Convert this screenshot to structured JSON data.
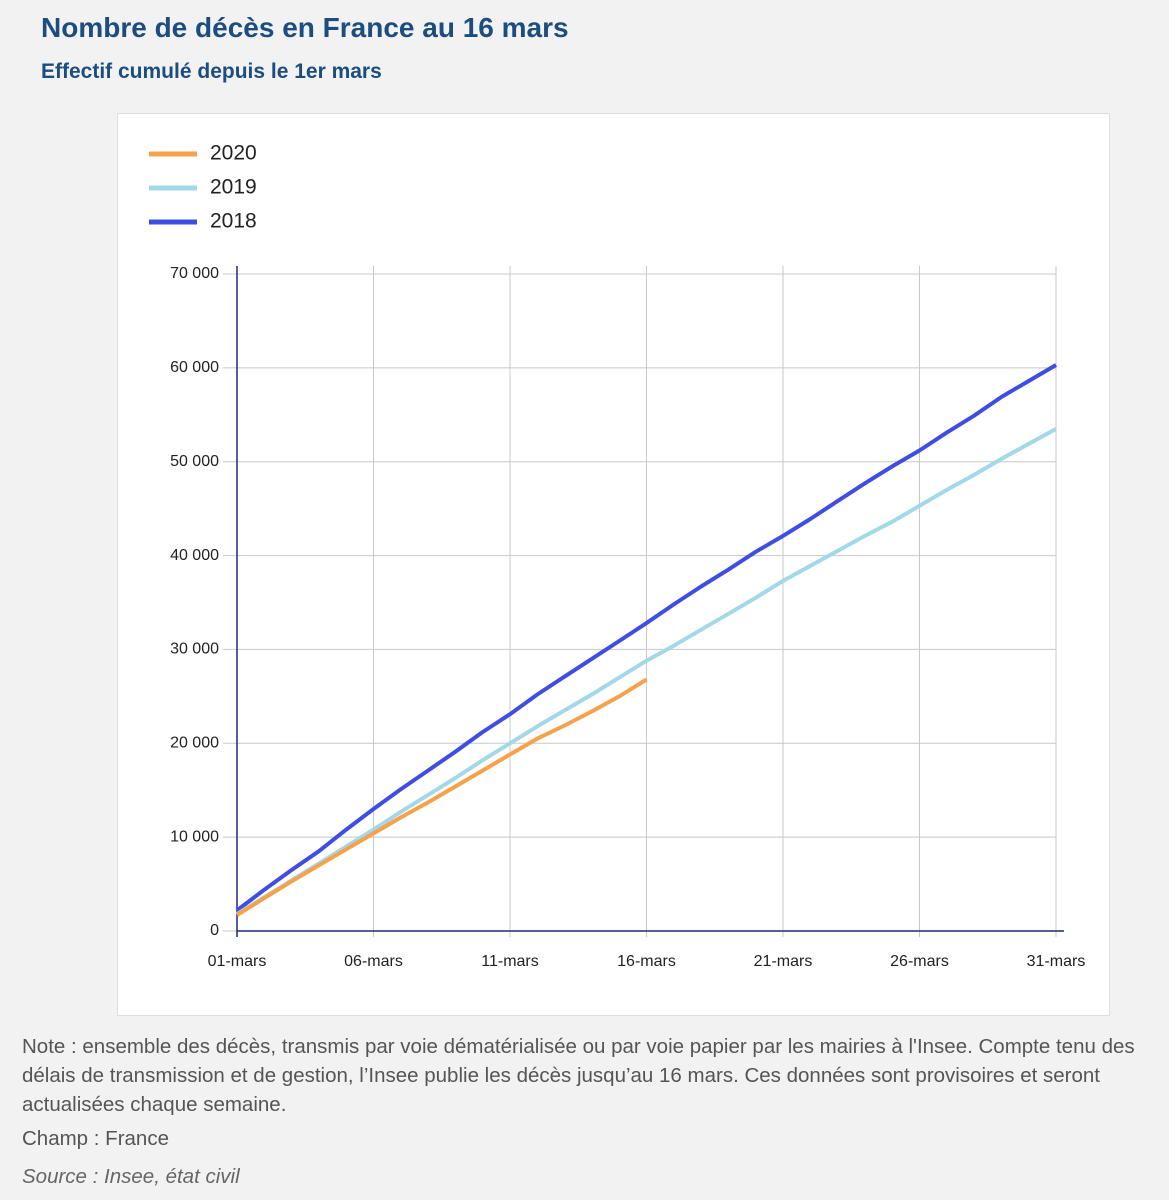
{
  "chart_data": {
    "type": "line",
    "title": "Nombre de décès en France au 16 mars",
    "subtitle": "Effectif cumulé depuis le 1er mars",
    "categories": [
      "01-mars",
      null,
      null,
      null,
      null,
      "06-mars",
      null,
      null,
      null,
      null,
      "11-mars",
      null,
      null,
      null,
      null,
      "16-mars",
      null,
      null,
      null,
      null,
      "21-mars",
      null,
      null,
      null,
      null,
      "26-mars",
      null,
      null,
      null,
      null,
      "31-mars"
    ],
    "series": [
      {
        "name": "2020",
        "color": "#f7a24b",
        "values": [
          1700,
          3500,
          5300,
          7000,
          8700,
          10400,
          12100,
          13700,
          15400,
          17100,
          18800,
          20500,
          21900,
          23400,
          25000,
          26800,
          null,
          null,
          null,
          null,
          null,
          null,
          null,
          null,
          null,
          null,
          null,
          null,
          null,
          null,
          null
        ]
      },
      {
        "name": "2019",
        "color": "#a3d8e8",
        "values": [
          1800,
          3600,
          5400,
          7200,
          9000,
          10800,
          12700,
          14500,
          16300,
          18200,
          20000,
          21800,
          23500,
          25200,
          27000,
          28800,
          30400,
          32100,
          33800,
          35500,
          37300,
          38900,
          40500,
          42100,
          43600,
          45300,
          47000,
          48600,
          50300,
          51900,
          53500
        ]
      },
      {
        "name": "2018",
        "color": "#3f4de3",
        "values": [
          2200,
          4400,
          6500,
          8500,
          10800,
          13000,
          15100,
          17100,
          19100,
          21200,
          23100,
          25200,
          27100,
          29000,
          30900,
          32800,
          34800,
          36700,
          38500,
          40400,
          42100,
          43900,
          45800,
          47700,
          49500,
          51200,
          53100,
          54900,
          56900,
          58600,
          60300
        ]
      }
    ],
    "ylim": [
      0,
      70000
    ],
    "yticks": [
      0,
      {
        "value": 10000,
        "label": "10 000"
      },
      {
        "value": 20000,
        "label": "20 000"
      },
      {
        "value": 30000,
        "label": "30 000"
      },
      {
        "value": 40000,
        "label": "40 000"
      },
      {
        "value": 50000,
        "label": "50 000"
      },
      {
        "value": 60000,
        "label": "60 000"
      },
      {
        "value": 70000,
        "label": "70 000"
      }
    ],
    "grid": true,
    "legend": "top-left"
  },
  "notes": {
    "note": "Note : ensemble des décès, transmis par voie dématérialisée ou par voie papier par les mairies à l'Insee. Compte tenu des délais de transmission et de gestion, l’Insee publie les décès jusqu’au 16 mars. Ces données sont provisoires et seront actualisées chaque semaine.",
    "champ": "Champ : France",
    "source": "Source : Insee, état civil"
  }
}
